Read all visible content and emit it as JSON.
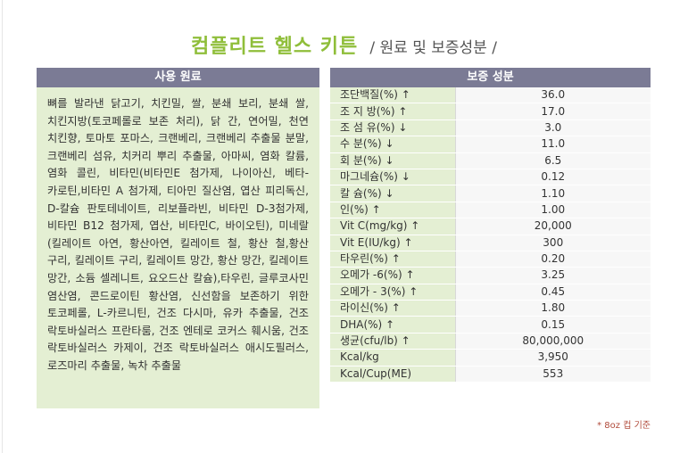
{
  "title": {
    "main": "컴플리트 헬스 키튼",
    "sub": "/ 원료 및 보증성분 /"
  },
  "ingredients": {
    "header": "사용 원료",
    "text": "뼈를 발라낸 닭고기, 치킨밀, 쌀, 분쇄 보리, 분쇄 쌀, 치킨지방(토코페롤로 보존 처리), 닭 간, 연어밀, 천연 치킨향, 토마토 포마스, 크랜베리, 크랜베리 추출물 분말, 크랜베리 섬유, 치커리 뿌리 추출물, 아마씨, 염화 칼륨, 염화 콜린, 비타민(비타민E 첨가제, 나이아신, 베타-카로틴,비타민 A 첨가제, 티아민 질산염, 엽산 피리독신, D-칼슘 판토테네이트, 리보플라빈, 비타민 D-3첨가제, 비타민 B12 첨가제, 엽산, 비타민C, 바이오틴), 미네랄(킬레이트 아연, 황산아연, 킬레이트 철, 황산 철,황산 구리, 킬레이트 구리, 킬레이트 망간, 황산 망간, 킬레이트 망간, 소듐 셀레니트, 요오드산 칼슘),타우린, 글루코사민 염산염, 콘드로이틴 황산염, 신선함을 보존하기 위한 토코페롤, L-카르니틴, 건조 다시마, 유카 추출물, 건조 락토바실러스 프란타룸, 건조 엔테로 코커스 훼시움, 건조 락토바실러스 카제이, 건조 락토바실러스 애시도필러스, 로즈마리 추출물, 녹차 추출물"
  },
  "analysis": {
    "header": "보증 성분",
    "rows": [
      {
        "label": "조단백질(%) ↑",
        "value": "36.0"
      },
      {
        "label": "조  지 방(%) ↑",
        "value": "17.0"
      },
      {
        "label": "조 섬 유(%) ↓",
        "value": "3.0"
      },
      {
        "label": "수   분(%) ↓",
        "value": "11.0"
      },
      {
        "label": "회   분(%) ↓",
        "value": "6.5"
      },
      {
        "label": "마그네슘(%) ↓",
        "value": "0.12"
      },
      {
        "label": "칼   슘(%) ↓",
        "value": "1.10"
      },
      {
        "label": "인(%) ↑",
        "value": "1.00"
      },
      {
        "label": "Vit C(mg/kg) ↑",
        "value": "20,000"
      },
      {
        "label": "Vit E(IU/kg) ↑",
        "value": "300"
      },
      {
        "label": "타우린(%) ↑",
        "value": "0.20"
      },
      {
        "label": "오메가 -6(%) ↑",
        "value": "3.25"
      },
      {
        "label": "오메가 - 3(%) ↑",
        "value": "0.45"
      },
      {
        "label": "라이신(%) ↑",
        "value": "1.80"
      },
      {
        "label": "DHA(%) ↑",
        "value": "0.15"
      },
      {
        "label": "생균(cfu/lb) ↑",
        "value": "80,000,000"
      },
      {
        "label": "Kcal/kg",
        "value": "3,950"
      },
      {
        "label": "Kcal/Cup(ME)",
        "value": "553"
      }
    ]
  },
  "footnote": "* 8oz 컵 기준"
}
